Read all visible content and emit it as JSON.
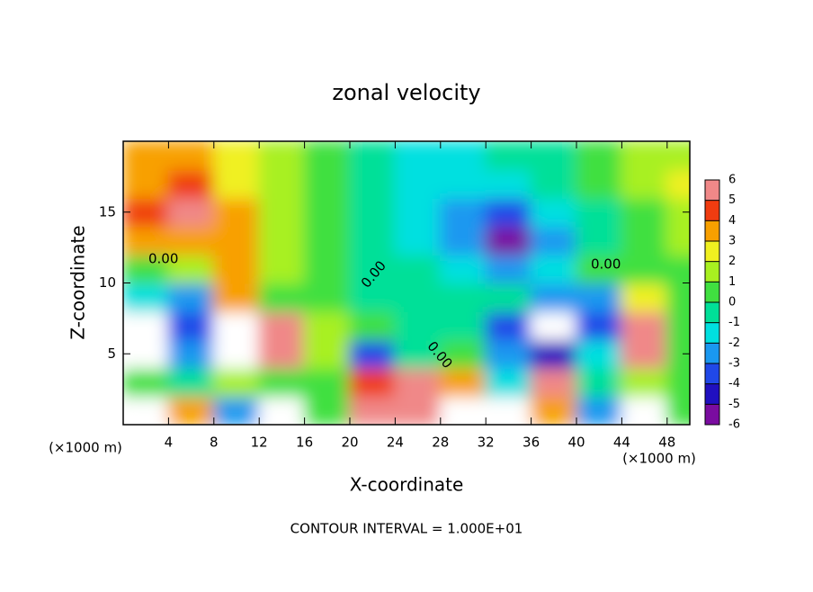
{
  "chart_data": {
    "type": "heatmap",
    "title": "zonal velocity",
    "x_label": "X-coordinate",
    "y_label": "Z-coordinate",
    "x_unit_label": "(×1000 m)",
    "footer": "CONTOUR INTERVAL = 1.000E+01",
    "contour_labels": [
      "0.00",
      "0.00",
      "0.00",
      "0.00"
    ],
    "xlim": [
      0,
      50
    ],
    "ylim": [
      0,
      20
    ],
    "xticks": [
      4,
      8,
      12,
      16,
      20,
      24,
      28,
      32,
      36,
      40,
      44,
      48
    ],
    "yticks": [
      5,
      10,
      15
    ],
    "x": [
      2,
      6,
      10,
      14,
      18,
      22,
      26,
      30,
      34,
      38,
      42,
      46,
      50
    ],
    "y": [
      1,
      3,
      5,
      7,
      9,
      11,
      13,
      15,
      17,
      19
    ],
    "z": [
      [
        8,
        3,
        -3,
        -8,
        0,
        5,
        5,
        -8,
        -8,
        3,
        -3,
        -8,
        0
      ],
      [
        0,
        -1,
        1,
        0,
        0,
        4,
        5,
        3,
        -2,
        6,
        -1,
        1,
        0
      ],
      [
        -8,
        -3,
        8,
        5,
        1,
        -4,
        -1,
        0,
        -3,
        -5,
        -2,
        5,
        0
      ],
      [
        -8,
        -4,
        8,
        5,
        1,
        0,
        -1,
        -1,
        -4,
        -8,
        -4,
        6,
        0
      ],
      [
        -2,
        -3,
        3,
        0,
        0,
        -1,
        -1,
        -1,
        -1,
        -3,
        -3,
        2,
        0
      ],
      [
        0,
        1,
        3,
        1,
        0,
        -1,
        -1,
        -2,
        -3,
        -2,
        0,
        0,
        0
      ],
      [
        3,
        3,
        3,
        1,
        0,
        -1,
        -2,
        -3,
        -6,
        -3,
        -1,
        0,
        1
      ],
      [
        4,
        5,
        3,
        1,
        0,
        -1,
        -2,
        -3,
        -4,
        -2,
        -1,
        0,
        1
      ],
      [
        3,
        4,
        2,
        1,
        0,
        -1,
        -2,
        -2,
        -2,
        -1,
        0,
        1,
        2
      ],
      [
        3,
        3,
        2,
        1,
        0,
        -1,
        -2,
        -2,
        -1,
        -1,
        0,
        1,
        1
      ]
    ],
    "colorbar": {
      "ticks": [
        -6,
        -5,
        -4,
        -3,
        -2,
        -1,
        0,
        1,
        2,
        3,
        4,
        5,
        6
      ],
      "colors": [
        "#7a0ca0",
        "#2010c0",
        "#2048e8",
        "#1a98f0",
        "#00e0e0",
        "#00e098",
        "#40e040",
        "#a8f020",
        "#f0f020",
        "#f8a000",
        "#f03c10",
        "#f08888"
      ],
      "out_of_range_color": "#ffffff"
    }
  }
}
